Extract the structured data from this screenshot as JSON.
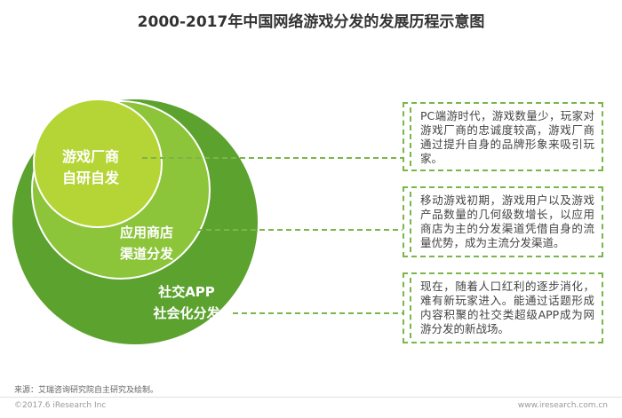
{
  "title": "2000-2017年中国网络游戏分发的发展历程示意图",
  "circles": [
    {
      "label_line1": "社交APP",
      "label_line2": "社会化分发"
    },
    {
      "label_line1": "应用商店",
      "label_line2": "渠道分发"
    },
    {
      "label_line1": "游戏厂商",
      "label_line2": "自研自发"
    }
  ],
  "descriptions": [
    "PC端游时代，游戏数量少，玩家对游戏厂商的忠诚度较高，游戏厂商通过提升自身的品牌形象来吸引玩家。",
    "移动游戏初期，游戏用户以及游戏产品数量的几何级数增长，以应用商店为主的分发渠道凭借自身的流量优势，成为主流分发渠道。",
    "现在，随着人口红利的逐步消化，难有新玩家进入。能通过话题形成内容积聚的社交类超级APP成为网游分发的新战场。"
  ],
  "colors": {
    "outer": "#5ca22e",
    "middle": "#8cc43a",
    "inner": "#b5d536",
    "dash": "#7ab648"
  },
  "source": "来源：艾瑞咨询研究院自主研究及绘制。",
  "footer_left": "©2017.6 iResearch Inc",
  "footer_right": "www.iresearch.com.cn"
}
